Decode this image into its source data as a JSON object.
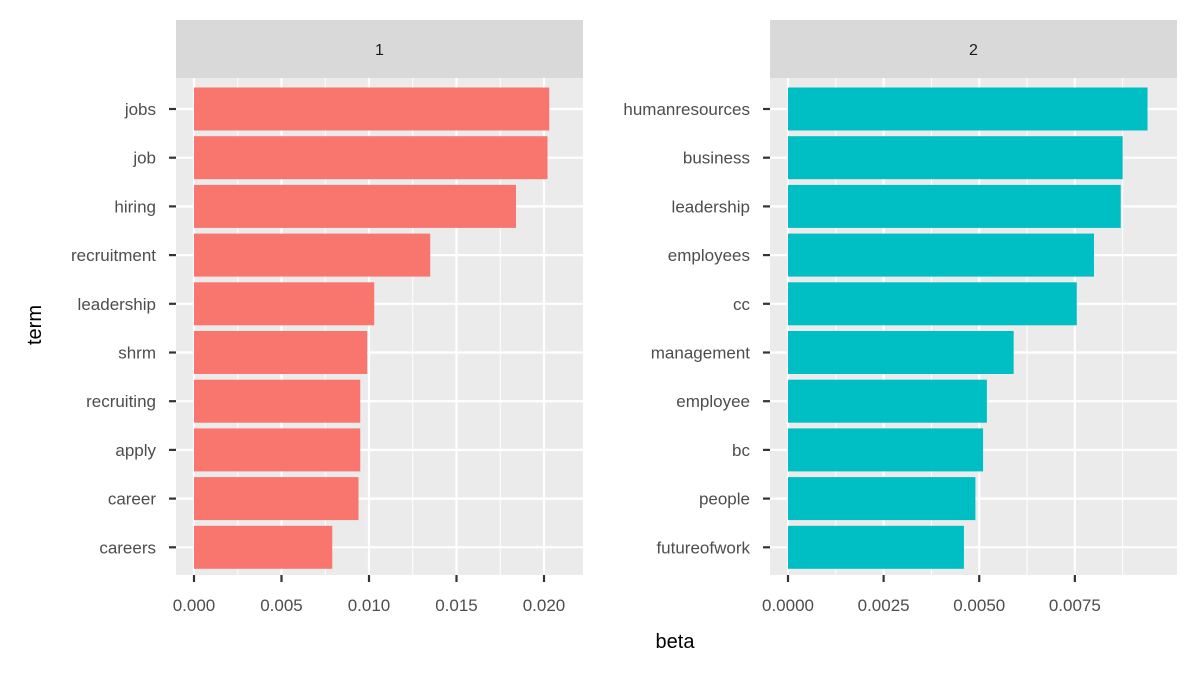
{
  "chart_data": {
    "type": "bar",
    "orientation": "horizontal",
    "xlabel": "beta",
    "ylabel": "term",
    "grid": true,
    "panels": [
      {
        "facet_label": "1",
        "color": "#F8766D",
        "xlim": [
          0,
          0.0212
        ],
        "ticks": [
          {
            "value": 0.0,
            "label": "0.000"
          },
          {
            "value": 0.005,
            "label": "0.005"
          },
          {
            "value": 0.01,
            "label": "0.010"
          },
          {
            "value": 0.015,
            "label": "0.015"
          },
          {
            "value": 0.02,
            "label": "0.020"
          }
        ],
        "categories": [
          "jobs",
          "job",
          "hiring",
          "recruitment",
          "leadership",
          "shrm",
          "recruiting",
          "apply",
          "career",
          "careers"
        ],
        "values": [
          0.0203,
          0.0202,
          0.0184,
          0.0135,
          0.0103,
          0.0099,
          0.0095,
          0.0095,
          0.0094,
          0.0079
        ]
      },
      {
        "facet_label": "2",
        "color": "#00BFC4",
        "xlim": [
          0,
          0.0097
        ],
        "ticks": [
          {
            "value": 0.0,
            "label": "0.0000"
          },
          {
            "value": 0.0025,
            "label": "0.0025"
          },
          {
            "value": 0.005,
            "label": "0.0050"
          },
          {
            "value": 0.0075,
            "label": "0.0075"
          }
        ],
        "categories": [
          "humanresources",
          "business",
          "leadership",
          "employees",
          "cc",
          "management",
          "employee",
          "bc",
          "people",
          "futureofwork"
        ],
        "values": [
          0.0094,
          0.00875,
          0.0087,
          0.008,
          0.00755,
          0.0059,
          0.0052,
          0.0051,
          0.0049,
          0.0046
        ]
      }
    ]
  }
}
